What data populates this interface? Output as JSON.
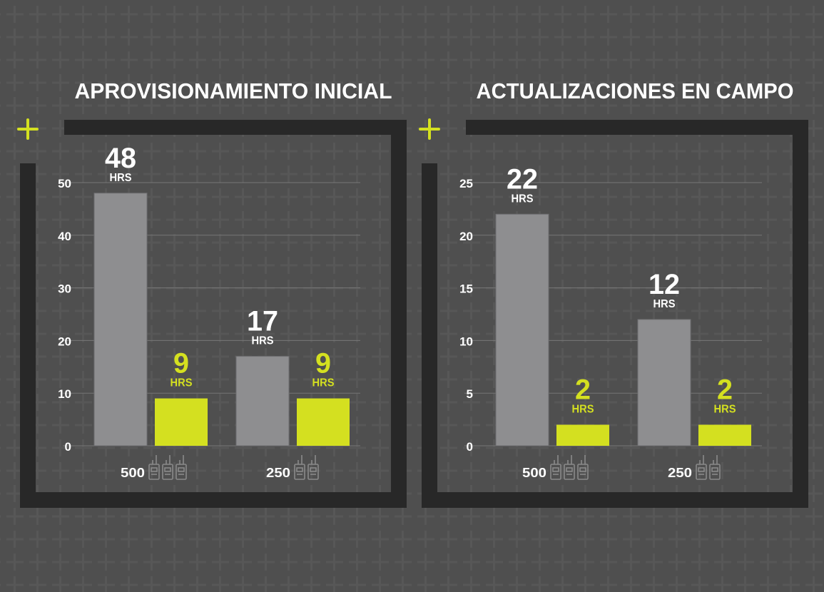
{
  "colors": {
    "background": "#4f4f4f",
    "grid_cross": "#5a5a5a",
    "frame": "#282828",
    "bar_gray": "#8e8e90",
    "bar_lime": "#d4e020",
    "text": "#ffffff",
    "gridline": "#777777",
    "icon": "#8a8a8a"
  },
  "unit_label": "HRS",
  "chart_data": [
    {
      "type": "bar",
      "title": "APROVISIONAMIENTO INICIAL",
      "ylim": [
        0,
        50
      ],
      "yticks": [
        0,
        10,
        20,
        30,
        40,
        50
      ],
      "categories": [
        {
          "label": "500",
          "radio_icons": 3
        },
        {
          "label": "250",
          "radio_icons": 2
        }
      ],
      "series": [
        {
          "name": "gray",
          "color": "#8e8e90",
          "values": [
            48,
            17
          ]
        },
        {
          "name": "lime",
          "color": "#d4e020",
          "values": [
            9,
            9
          ]
        }
      ],
      "legend": "none",
      "grid": true
    },
    {
      "type": "bar",
      "title": "ACTUALIZACIONES EN CAMPO",
      "ylim": [
        0,
        25
      ],
      "yticks": [
        0,
        5,
        10,
        15,
        20,
        25
      ],
      "categories": [
        {
          "label": "500",
          "radio_icons": 3
        },
        {
          "label": "250",
          "radio_icons": 2
        }
      ],
      "series": [
        {
          "name": "gray",
          "color": "#8e8e90",
          "values": [
            22,
            12
          ]
        },
        {
          "name": "lime",
          "color": "#d4e020",
          "values": [
            2,
            2
          ]
        }
      ],
      "legend": "none",
      "grid": true
    }
  ]
}
